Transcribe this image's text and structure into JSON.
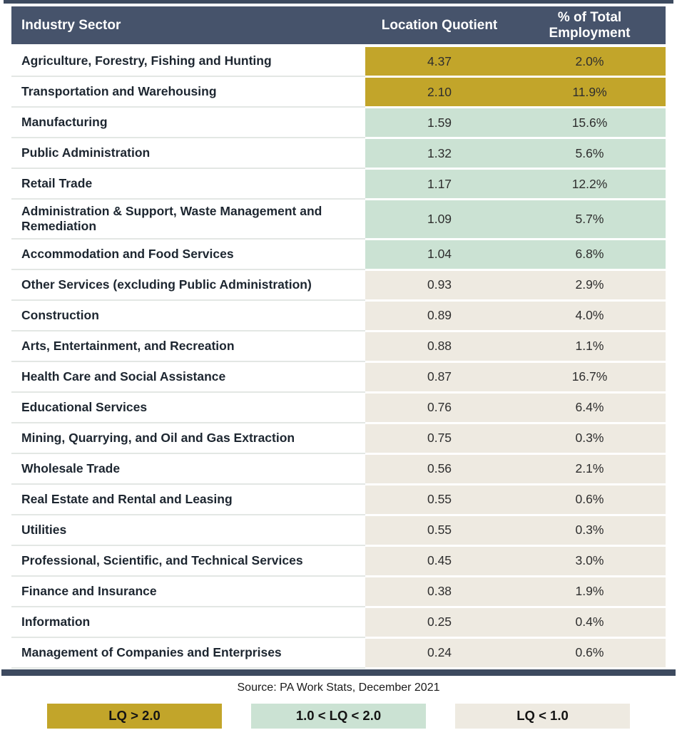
{
  "table": {
    "columns": [
      "Industry Sector",
      "Location Quotient",
      "% of Total Employment"
    ],
    "rows": [
      {
        "sector": "Agriculture, Forestry, Fishing and Hunting",
        "lq": "4.37",
        "pct": "2.0%",
        "tier": "gold"
      },
      {
        "sector": "Transportation and Warehousing",
        "lq": "2.10",
        "pct": "11.9%",
        "tier": "gold"
      },
      {
        "sector": "Manufacturing",
        "lq": "1.59",
        "pct": "15.6%",
        "tier": "green"
      },
      {
        "sector": "Public Administration",
        "lq": "1.32",
        "pct": "5.6%",
        "tier": "green"
      },
      {
        "sector": "Retail Trade",
        "lq": "1.17",
        "pct": "12.2%",
        "tier": "green"
      },
      {
        "sector": "Administration & Support, Waste Management and Remediation",
        "lq": "1.09",
        "pct": "5.7%",
        "tier": "green"
      },
      {
        "sector": "Accommodation and Food Services",
        "lq": "1.04",
        "pct": "6.8%",
        "tier": "green"
      },
      {
        "sector": "Other Services (excluding Public Administration)",
        "lq": "0.93",
        "pct": "2.9%",
        "tier": "beige"
      },
      {
        "sector": "Construction",
        "lq": "0.89",
        "pct": "4.0%",
        "tier": "beige"
      },
      {
        "sector": "Arts, Entertainment, and Recreation",
        "lq": "0.88",
        "pct": "1.1%",
        "tier": "beige"
      },
      {
        "sector": "Health Care and Social Assistance",
        "lq": "0.87",
        "pct": "16.7%",
        "tier": "beige"
      },
      {
        "sector": "Educational Services",
        "lq": "0.76",
        "pct": "6.4%",
        "tier": "beige"
      },
      {
        "sector": "Mining, Quarrying, and Oil and Gas Extraction",
        "lq": "0.75",
        "pct": "0.3%",
        "tier": "beige"
      },
      {
        "sector": "Wholesale Trade",
        "lq": "0.56",
        "pct": "2.1%",
        "tier": "beige"
      },
      {
        "sector": "Real Estate and Rental and Leasing",
        "lq": "0.55",
        "pct": "0.6%",
        "tier": "beige"
      },
      {
        "sector": "Utilities",
        "lq": "0.55",
        "pct": "0.3%",
        "tier": "beige"
      },
      {
        "sector": "Professional, Scientific, and Technical Services",
        "lq": "0.45",
        "pct": "3.0%",
        "tier": "beige"
      },
      {
        "sector": "Finance and Insurance",
        "lq": "0.38",
        "pct": "1.9%",
        "tier": "beige"
      },
      {
        "sector": "Information",
        "lq": "0.25",
        "pct": "0.4%",
        "tier": "beige"
      },
      {
        "sector": "Management of Companies and Enterprises",
        "lq": "0.24",
        "pct": "0.6%",
        "tier": "beige"
      }
    ]
  },
  "source": "Source: PA Work Stats, December 2021",
  "legend": [
    {
      "label": "LQ > 2.0",
      "tier": "gold"
    },
    {
      "label": "1.0 < LQ < 2.0",
      "tier": "green"
    },
    {
      "label": "LQ < 1.0",
      "tier": "beige"
    }
  ],
  "colors": {
    "header_bg": "#46536B",
    "rule": "#3D4A5F",
    "gold": "#C2A52A",
    "green": "#CBE2D3",
    "beige": "#EEEAE1"
  },
  "chart_data": {
    "type": "table",
    "columns": [
      "Industry Sector",
      "Location Quotient",
      "% of Total Employment"
    ],
    "rows": [
      [
        "Agriculture, Forestry, Fishing and Hunting",
        4.37,
        "2.0%"
      ],
      [
        "Transportation and Warehousing",
        2.1,
        "11.9%"
      ],
      [
        "Manufacturing",
        1.59,
        "15.6%"
      ],
      [
        "Public Administration",
        1.32,
        "5.6%"
      ],
      [
        "Retail Trade",
        1.17,
        "12.2%"
      ],
      [
        "Administration & Support, Waste Management and Remediation",
        1.09,
        "5.7%"
      ],
      [
        "Accommodation and Food Services",
        1.04,
        "6.8%"
      ],
      [
        "Other Services (excluding Public Administration)",
        0.93,
        "2.9%"
      ],
      [
        "Construction",
        0.89,
        "4.0%"
      ],
      [
        "Arts, Entertainment, and Recreation",
        0.88,
        "1.1%"
      ],
      [
        "Health Care and Social Assistance",
        0.87,
        "16.7%"
      ],
      [
        "Educational Services",
        0.76,
        "6.4%"
      ],
      [
        "Mining, Quarrying, and Oil and Gas Extraction",
        0.75,
        "0.3%"
      ],
      [
        "Wholesale Trade",
        0.56,
        "2.1%"
      ],
      [
        "Real Estate and Rental and Leasing",
        0.55,
        "0.6%"
      ],
      [
        "Utilities",
        0.55,
        "0.3%"
      ],
      [
        "Professional, Scientific, and Technical Services",
        0.45,
        "3.0%"
      ],
      [
        "Finance and Insurance",
        0.38,
        "1.9%"
      ],
      [
        "Information",
        0.25,
        "0.4%"
      ],
      [
        "Management of Companies and Enterprises",
        0.24,
        "0.6%"
      ]
    ],
    "source": "Source: PA Work Stats, December 2021",
    "color_coding": {
      "gold": "LQ > 2.0",
      "green": "1.0 < LQ < 2.0",
      "beige": "LQ < 1.0"
    },
    "legend_position": "bottom",
    "title": ""
  }
}
